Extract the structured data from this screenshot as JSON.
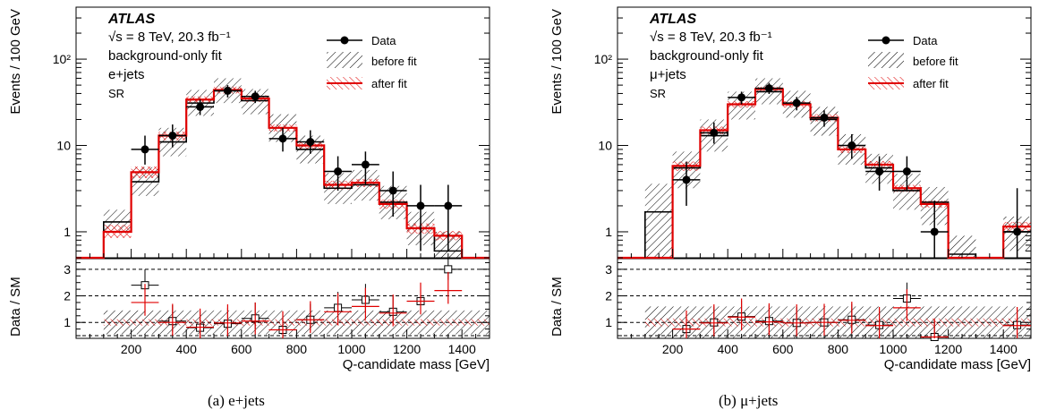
{
  "figure": {
    "captions": [
      "(a)  e+jets",
      "(b)  μ+jets"
    ],
    "ylabel_top": "Events / 100 GeV",
    "ylabel_bottom": "Data / SM",
    "xlabel": "Q-candidate mass [GeV]",
    "colors": {
      "data": "#000000",
      "before_fit": "#000000",
      "after_fit": "#e00000"
    }
  },
  "chart_data": [
    {
      "type": "histogram",
      "panel": "(a)",
      "texts": [
        "ATLAS",
        "√s = 8 TeV, 20.3 fb⁻¹",
        "background-only fit",
        "e+jets",
        "SR"
      ],
      "xlabel": "Q-candidate mass [GeV]",
      "ylabel": "Events / 100 GeV",
      "xlim": [
        0,
        1500
      ],
      "ylim": [
        0.5,
        400
      ],
      "ylog": true,
      "xticks": [
        200,
        400,
        600,
        800,
        1000,
        1200,
        1400
      ],
      "yticks": [
        {
          "v": 1,
          "label": "1"
        },
        {
          "v": 10,
          "label": "10"
        },
        {
          "v": 100,
          "label": "10²"
        }
      ],
      "legend": [
        "Data",
        "before fit",
        "after fit"
      ],
      "legend_position": "top-right",
      "bin_edges": [
        0,
        100,
        200,
        300,
        400,
        500,
        600,
        700,
        800,
        900,
        1000,
        1100,
        1200,
        1300,
        1400,
        1500
      ],
      "series": [
        {
          "name": "before fit",
          "values": [
            0.5,
            1.3,
            3.8,
            11,
            31,
            43,
            33,
            16,
            9,
            3.2,
            3.5,
            2.2,
            1.1,
            0.6,
            0.5
          ],
          "band": [
            [
              0.5,
              0.5
            ],
            [
              1.0,
              1.8
            ],
            [
              2.6,
              5.6
            ],
            [
              7.5,
              16
            ],
            [
              22,
              44
            ],
            [
              31,
              60
            ],
            [
              23,
              45
            ],
            [
              11,
              23
            ],
            [
              6.2,
              13
            ],
            [
              2.1,
              4.8
            ],
            [
              2.3,
              5.2
            ],
            [
              1.4,
              3.4
            ],
            [
              0.7,
              1.7
            ],
            [
              0.5,
              1.0
            ],
            [
              0.5,
              0.5
            ]
          ]
        },
        {
          "name": "after fit",
          "values": [
            0.5,
            1.0,
            4.9,
            13,
            34,
            44,
            35,
            16,
            10,
            3.5,
            3.7,
            2.1,
            1.1,
            0.9,
            0.5
          ],
          "band": [
            [
              0.5,
              0.5
            ],
            [
              0.85,
              1.2
            ],
            [
              4.2,
              5.7
            ],
            [
              11.5,
              14.5
            ],
            [
              31,
              37
            ],
            [
              40,
              48
            ],
            [
              32,
              38
            ],
            [
              14.5,
              17.5
            ],
            [
              9,
              11
            ],
            [
              3.1,
              3.9
            ],
            [
              3.3,
              4.1
            ],
            [
              1.85,
              2.35
            ],
            [
              0.95,
              1.25
            ],
            [
              0.8,
              1.02
            ],
            [
              0.5,
              0.5
            ]
          ]
        },
        {
          "name": "Data",
          "x": [
            250,
            350,
            450,
            550,
            650,
            750,
            850,
            950,
            1050,
            1150,
            1250,
            1350
          ],
          "values": [
            9,
            13,
            28,
            43,
            37,
            12,
            11,
            5,
            6,
            3,
            2,
            2
          ],
          "yerr": [
            [
              6,
              13
            ],
            [
              9.5,
              17.5
            ],
            [
              22.5,
              34
            ],
            [
              36,
              50
            ],
            [
              31,
              43
            ],
            [
              8.5,
              16
            ],
            [
              8,
              15
            ],
            [
              3,
              7.5
            ],
            [
              3.5,
              8.5
            ],
            [
              1.5,
              5
            ],
            [
              0.6,
              3.5
            ],
            [
              0.6,
              3.5
            ]
          ]
        }
      ],
      "ratio": {
        "ylim": [
          0.4,
          3.4
        ],
        "yticks": [
          1,
          2,
          3
        ],
        "before_fit": [
          2.4,
          1.05,
          0.8,
          0.95,
          1.15,
          0.72,
          1.1,
          1.55,
          1.85,
          1.4,
          1.8,
          3.0
        ],
        "before_band_halfwidth": 0.45,
        "after_fit": [
          1.75,
          1.0,
          0.82,
          0.98,
          1.05,
          0.72,
          1.1,
          1.4,
          1.6,
          1.35,
          1.8,
          2.2
        ],
        "after_band_halfwidth": 0.12
      }
    },
    {
      "type": "histogram",
      "panel": "(b)",
      "texts": [
        "ATLAS",
        "√s = 8 TeV, 20.3 fb⁻¹",
        "background-only fit",
        "μ+jets",
        "SR"
      ],
      "xlabel": "Q-candidate mass [GeV]",
      "ylabel": "Events / 100 GeV",
      "xlim": [
        0,
        1500
      ],
      "ylim": [
        0.5,
        400
      ],
      "ylog": true,
      "xticks": [
        200,
        400,
        600,
        800,
        1000,
        1200,
        1400
      ],
      "yticks": [
        {
          "v": 1,
          "label": "1"
        },
        {
          "v": 10,
          "label": "10"
        },
        {
          "v": 100,
          "label": "10²"
        }
      ],
      "legend": [
        "Data",
        "before fit",
        "after fit"
      ],
      "legend_position": "top-right",
      "bin_edges": [
        0,
        100,
        200,
        300,
        400,
        500,
        600,
        700,
        800,
        900,
        1000,
        1100,
        1200,
        1300,
        1400,
        1500
      ],
      "series": [
        {
          "name": "before fit",
          "values": [
            0.5,
            1.7,
            5.5,
            13,
            30,
            42,
            30,
            20,
            9,
            5.5,
            3,
            2.2,
            0.55,
            0.5,
            1.0
          ],
          "band": [
            [
              0.5,
              0.5
            ],
            [
              0.5,
              3.6
            ],
            [
              3.2,
              8.5
            ],
            [
              8.5,
              20
            ],
            [
              20,
              42
            ],
            [
              30,
              60
            ],
            [
              21,
              43
            ],
            [
              13,
              28
            ],
            [
              6,
              13.5
            ],
            [
              3.6,
              8
            ],
            [
              1.8,
              4.7
            ],
            [
              1.2,
              3.3
            ],
            [
              0.5,
              0.9
            ],
            [
              0.5,
              0.5
            ],
            [
              0.6,
              1.5
            ]
          ]
        },
        {
          "name": "after fit",
          "values": [
            0.5,
            0.5,
            5.8,
            15,
            30,
            45,
            30,
            21,
            9,
            6,
            3.2,
            2.1,
            0.5,
            0.5,
            1.15
          ],
          "band": [
            [
              0.5,
              0.5
            ],
            [
              0.5,
              0.5
            ],
            [
              5.1,
              6.5
            ],
            [
              13.5,
              16.5
            ],
            [
              27.5,
              32.5
            ],
            [
              42,
              48
            ],
            [
              27.5,
              32.5
            ],
            [
              19,
              23
            ],
            [
              8.2,
              9.8
            ],
            [
              5.4,
              6.6
            ],
            [
              2.9,
              3.5
            ],
            [
              1.9,
              2.3
            ],
            [
              0.5,
              0.5
            ],
            [
              0.5,
              0.5
            ],
            [
              1.0,
              1.3
            ]
          ]
        },
        {
          "name": "Data",
          "x": [
            250,
            350,
            450,
            550,
            650,
            750,
            850,
            950,
            1050,
            1150,
            1450
          ],
          "values": [
            4,
            14,
            36,
            46,
            31,
            21,
            10,
            5,
            5,
            1,
            1
          ],
          "yerr": [
            [
              2,
              6.5
            ],
            [
              10.5,
              18.5
            ],
            [
              30,
              42
            ],
            [
              39.5,
              53
            ],
            [
              25.5,
              36.5
            ],
            [
              16.5,
              25.5
            ],
            [
              7,
              13.5
            ],
            [
              3,
              7.5
            ],
            [
              3,
              7.5
            ],
            [
              0.5,
              2.3
            ],
            [
              0.5,
              3.2
            ]
          ]
        }
      ],
      "ratio": {
        "ylim": [
          0.4,
          3.4
        ],
        "yticks": [
          1,
          2,
          3
        ],
        "before_fit": [
          0.75,
          1.0,
          1.22,
          1.05,
          0.98,
          1.0,
          1.1,
          0.9,
          1.9,
          0.45,
          0,
          0,
          0.9
        ],
        "before_band_halfwidth": 0.6,
        "after_fit": [
          0.75,
          0.98,
          1.2,
          1.02,
          0.98,
          1.0,
          1.08,
          0.88,
          1.55,
          0.45,
          0,
          0,
          0.88
        ],
        "after_band_halfwidth": 0.15
      }
    }
  ]
}
